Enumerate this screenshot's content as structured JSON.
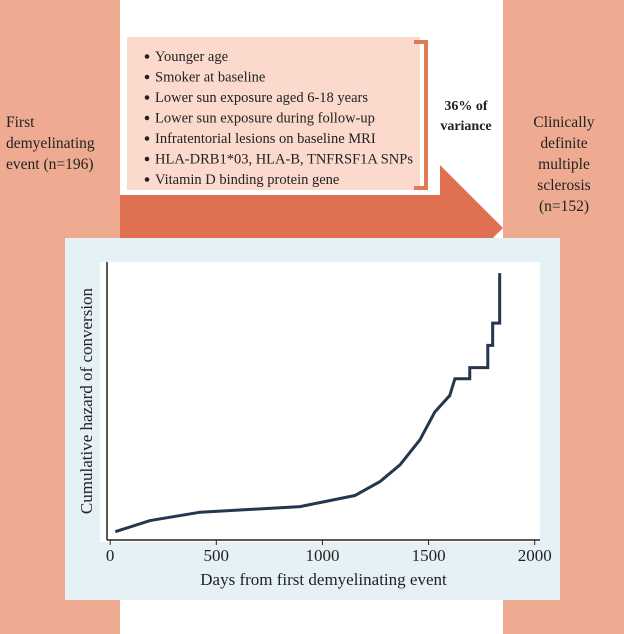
{
  "diagram": {
    "start": {
      "lines": [
        "First",
        "demyelinating",
        "event (n=196)"
      ]
    },
    "end": {
      "lines": [
        "Clinically",
        "definite",
        "multiple",
        "sclerosis",
        "(n=152)"
      ]
    },
    "factors": [
      "Younger age",
      "Smoker at baseline",
      "Lower sun exposure aged 6-18 years",
      "Lower sun exposure during follow-up",
      "Infratentorial lesions on baseline MRI",
      "HLA-DRB1*03, HLA-B, TNFRSF1A SNPs",
      "Vitamin D binding protein gene"
    ],
    "variance": {
      "lines": [
        "36% of",
        "variance"
      ]
    }
  },
  "chart_data": {
    "type": "line",
    "x_label": "Days from first demyelinating event",
    "y_label": "Cumulative hazard of conversion",
    "xlim": [
      -15,
      2025
    ],
    "xticks": [
      0,
      500,
      1000,
      1500,
      2000
    ],
    "ylim": [
      0,
      1
    ],
    "series": [
      {
        "color": "#253650",
        "x": [
          24,
          188,
          424,
          894,
          1153,
          1271,
          1365,
          1459,
          1529,
          1600,
          1624,
          1694,
          1694,
          1779,
          1779,
          1802,
          1802,
          1835,
          1835
        ],
        "values": [
          0.03,
          0.07,
          0.1,
          0.12,
          0.16,
          0.21,
          0.27,
          0.36,
          0.46,
          0.52,
          0.58,
          0.58,
          0.62,
          0.62,
          0.7,
          0.7,
          0.78,
          0.78,
          0.96
        ]
      }
    ]
  }
}
